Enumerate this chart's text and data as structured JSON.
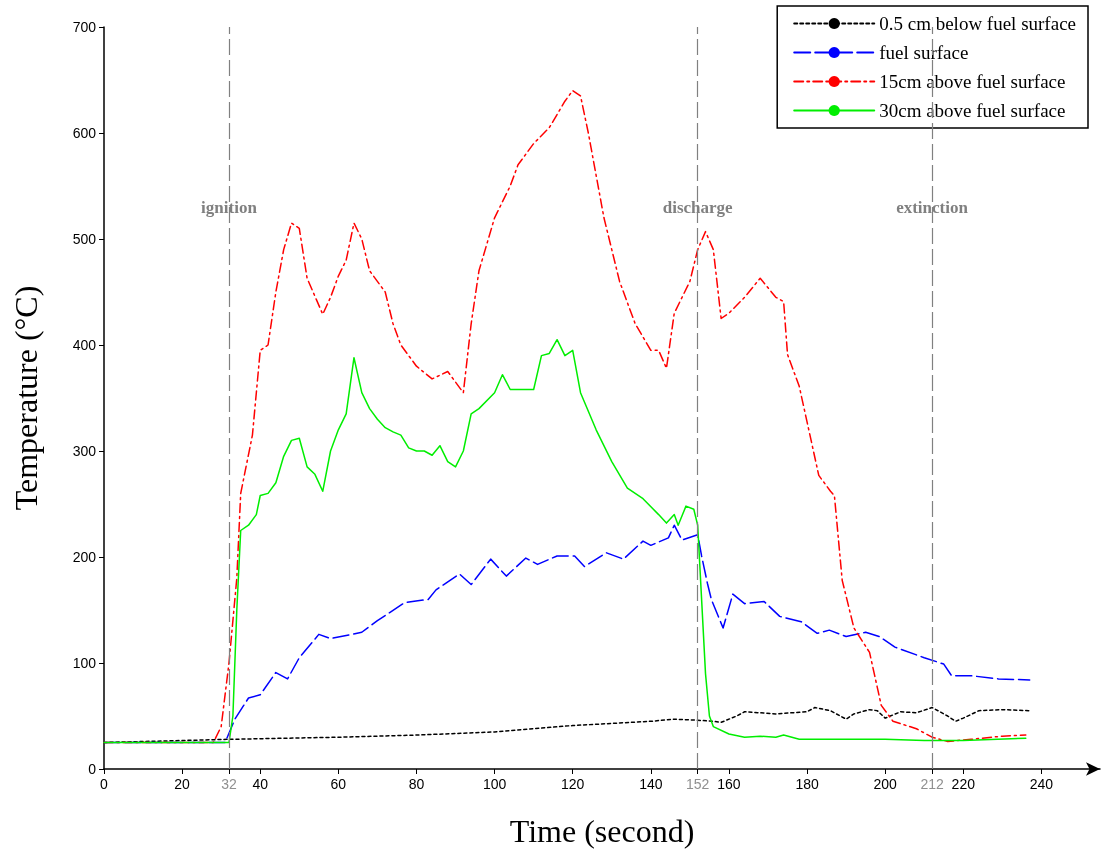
{
  "chart_data": {
    "type": "line",
    "xlabel": "Time (second)",
    "ylabel": "Temperature (°C)",
    "xlim": [
      0,
      255
    ],
    "ylim": [
      0,
      700
    ],
    "xticks": [
      0,
      20,
      32,
      40,
      60,
      80,
      100,
      120,
      140,
      152,
      160,
      180,
      200,
      212,
      220,
      240
    ],
    "yticks": [
      0,
      100,
      200,
      300,
      400,
      500,
      600,
      700
    ],
    "grid": false,
    "legend": "top right",
    "marker": "none",
    "ref_lines": [
      {
        "axis": "x",
        "value": 32,
        "label": "ignition",
        "color": "#808080",
        "line_style": "dashed"
      },
      {
        "axis": "x",
        "value": 152,
        "label": "discharge",
        "color": "#808080",
        "line_style": "dashed"
      },
      {
        "axis": "x",
        "value": 212,
        "label": "extinction",
        "color": "#808080",
        "line_style": "dashed"
      }
    ],
    "series": [
      {
        "name": "0.5 cm below fuel surface",
        "color": "#000000",
        "line_style": "dotted",
        "x": [
          0,
          32,
          60,
          80,
          100,
          110,
          120,
          130,
          140,
          146,
          152,
          156,
          158,
          162,
          164,
          168,
          172,
          176,
          180,
          182,
          186,
          190,
          192,
          196,
          198,
          200,
          204,
          208,
          212,
          216,
          218,
          220,
          224,
          230,
          237
        ],
        "values": [
          25,
          28,
          30,
          32,
          35,
          38,
          41,
          43,
          45,
          47,
          46,
          45,
          44,
          50,
          54,
          53,
          52,
          53,
          54,
          58,
          55,
          47,
          52,
          56,
          55,
          48,
          54,
          53,
          58,
          50,
          45,
          48,
          55,
          56,
          55
        ]
      },
      {
        "name": "fuel surface",
        "color": "#0000ff",
        "line_style": "dashed",
        "x": [
          0,
          31,
          33.5,
          37,
          40,
          44,
          47,
          50,
          55,
          58,
          66,
          70,
          77,
          83,
          85,
          91,
          94,
          99,
          103,
          108,
          111,
          116,
          120.5,
          123,
          128.6,
          133,
          138,
          140,
          144.5,
          146,
          148,
          152,
          153,
          154.5,
          155.5,
          158.5,
          161,
          164,
          169,
          173,
          178.5,
          182.6,
          185.7,
          190,
          195,
          198.5,
          202.5,
          210,
          215,
          217,
          222,
          229,
          237
        ],
        "values": [
          25,
          25,
          47,
          67,
          70,
          91,
          85,
          105,
          127,
          123,
          129,
          140,
          157,
          160,
          169,
          184,
          174,
          198,
          182,
          199,
          193,
          201,
          201,
          191,
          204,
          198,
          215,
          211,
          218,
          230,
          216,
          221,
          201,
          175,
          160,
          133,
          165,
          156,
          158,
          144,
          139,
          128,
          131,
          125,
          129,
          125,
          115,
          105,
          99,
          88,
          88,
          85,
          84
        ]
      },
      {
        "name": "15cm above fuel surface",
        "color": "#ff0000",
        "line_style": "dashdot",
        "x": [
          0,
          28,
          30,
          32,
          34,
          35,
          38,
          40,
          42,
          44,
          46,
          48,
          50,
          52,
          56,
          58,
          60,
          62,
          64,
          66,
          68,
          72,
          74,
          76,
          80,
          84,
          88,
          92,
          94,
          96,
          100,
          104,
          106,
          110,
          114,
          118,
          120,
          122,
          124,
          128,
          132,
          136,
          140,
          142,
          144,
          146,
          150,
          152,
          154,
          156,
          158,
          160,
          164,
          168,
          172,
          174,
          175,
          178,
          183,
          186,
          187,
          189,
          192,
          196,
          199,
          202,
          208,
          212,
          216,
          222,
          230,
          236
        ],
        "values": [
          25,
          25,
          40,
          100,
          180,
          260,
          315,
          395,
          400,
          450,
          490,
          515,
          510,
          463,
          429,
          445,
          465,
          480,
          515,
          500,
          470,
          450,
          420,
          400,
          380,
          368,
          375,
          355,
          420,
          470,
          520,
          550,
          570,
          590,
          605,
          630,
          640,
          635,
          600,
          520,
          460,
          420,
          395,
          395,
          378,
          430,
          460,
          490,
          507,
          490,
          425,
          430,
          445,
          463,
          445,
          441,
          391,
          361,
          277,
          262,
          258,
          178,
          133,
          110,
          60,
          45,
          38,
          30,
          26,
          28,
          31,
          32
        ]
      },
      {
        "name": "30cm above fuel surface",
        "color": "#00ee00",
        "line_style": "solid",
        "x": [
          0,
          32,
          33,
          34,
          35,
          37,
          39,
          40,
          42,
          44,
          46,
          48,
          50,
          52,
          54,
          56,
          58,
          60,
          62,
          64,
          66,
          68,
          70,
          72,
          74,
          76,
          78,
          80,
          82,
          84,
          86,
          88,
          90,
          92,
          94,
          96,
          100,
          102,
          104,
          110,
          112,
          114,
          116,
          118,
          120,
          122,
          126,
          130,
          134,
          138,
          142,
          144,
          146,
          147,
          149,
          151,
          152,
          153,
          154,
          155,
          156,
          160,
          164,
          168,
          172,
          174,
          178,
          200,
          210,
          220,
          236
        ],
        "values": [
          25,
          25,
          50,
          150,
          225,
          230,
          240,
          258,
          260,
          270,
          295,
          310,
          312,
          285,
          278,
          262,
          300,
          320,
          335,
          388,
          355,
          340,
          330,
          322,
          318,
          315,
          303,
          300,
          300,
          296,
          305,
          290,
          285,
          300,
          335,
          340,
          355,
          372,
          358,
          358,
          390,
          392,
          405,
          390,
          395,
          355,
          320,
          290,
          265,
          255,
          240,
          232,
          240,
          230,
          248,
          245,
          230,
          160,
          90,
          50,
          40,
          33,
          30,
          31,
          30,
          32,
          28,
          28,
          27,
          27,
          29
        ]
      }
    ]
  }
}
